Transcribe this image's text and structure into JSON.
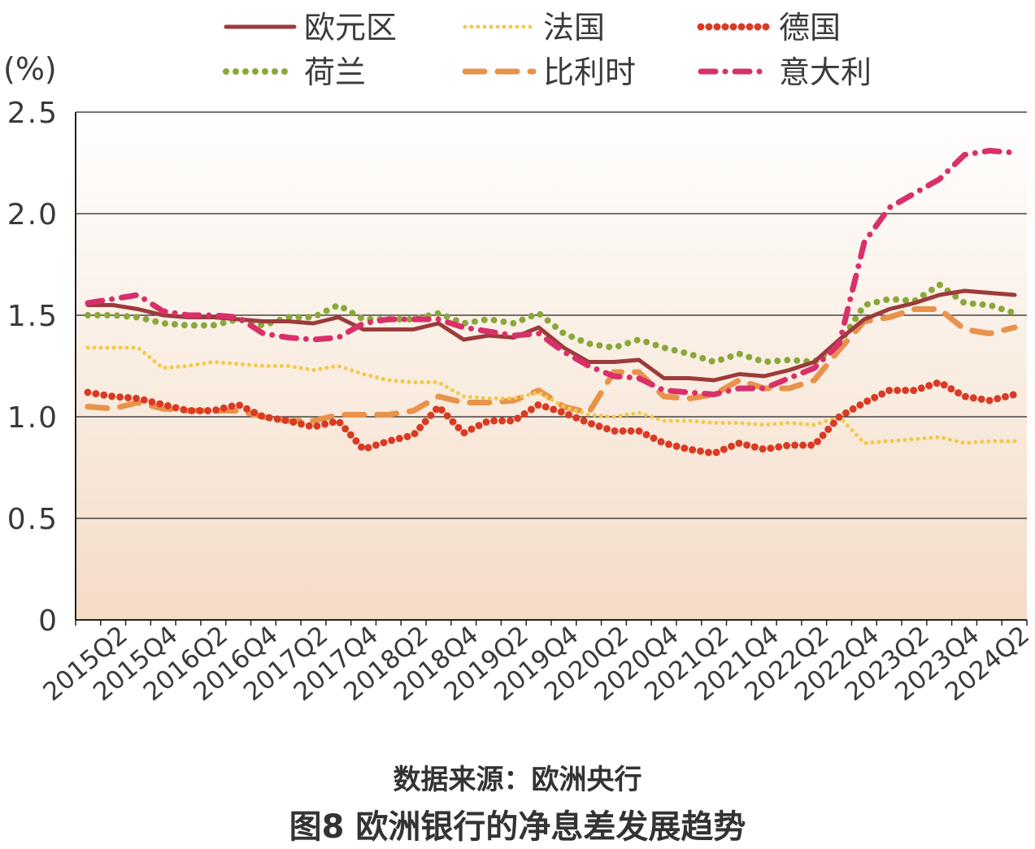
{
  "chart_data": {
    "type": "line",
    "title": "图8 欧洲银行的净息差发展趋势",
    "source": "数据来源：欧洲央行",
    "ylabel": "(%)",
    "ylim": [
      0,
      2.5
    ],
    "yticks": [
      "0",
      "0.5",
      "1.0",
      "1.5",
      "2.0",
      "2.5"
    ],
    "grid": true,
    "legend_position": "top",
    "x_tick_labels": [
      "2015Q2",
      "2015Q4",
      "2016Q2",
      "2016Q4",
      "2017Q2",
      "2017Q4",
      "2018Q2",
      "2018Q4",
      "2019Q2",
      "2019Q4",
      "2020Q2",
      "2020Q4",
      "2021Q2",
      "2021Q4",
      "2022Q2",
      "2022Q4",
      "2023Q2",
      "2023Q4",
      "2024Q2"
    ],
    "x": [
      "2015Q1",
      "2015Q2",
      "2015Q3",
      "2015Q4",
      "2016Q1",
      "2016Q2",
      "2016Q3",
      "2016Q4",
      "2017Q1",
      "2017Q2",
      "2017Q3",
      "2017Q4",
      "2018Q1",
      "2018Q2",
      "2018Q3",
      "2018Q4",
      "2019Q1",
      "2019Q2",
      "2019Q3",
      "2019Q4",
      "2020Q1",
      "2020Q2",
      "2020Q3",
      "2020Q4",
      "2021Q1",
      "2021Q2",
      "2021Q3",
      "2021Q4",
      "2022Q1",
      "2022Q2",
      "2022Q3",
      "2022Q4",
      "2023Q1",
      "2023Q2",
      "2023Q3",
      "2023Q4",
      "2024Q1",
      "2024Q2"
    ],
    "series": [
      {
        "name": "欧元区",
        "color": "#9c3b3b",
        "style": "solid",
        "values": [
          1.55,
          1.55,
          1.53,
          1.5,
          1.49,
          1.49,
          1.48,
          1.47,
          1.47,
          1.46,
          1.49,
          1.43,
          1.43,
          1.43,
          1.46,
          1.38,
          1.4,
          1.39,
          1.44,
          1.34,
          1.27,
          1.27,
          1.28,
          1.19,
          1.19,
          1.18,
          1.21,
          1.2,
          1.23,
          1.27,
          1.38,
          1.48,
          1.53,
          1.56,
          1.6,
          1.62,
          1.61,
          1.6
        ]
      },
      {
        "name": "法国",
        "color": "#f2c94c",
        "style": "dots",
        "values": [
          1.34,
          1.34,
          1.34,
          1.24,
          1.25,
          1.27,
          1.26,
          1.25,
          1.25,
          1.23,
          1.25,
          1.21,
          1.18,
          1.17,
          1.17,
          1.1,
          1.09,
          1.09,
          1.12,
          1.05,
          1.01,
          1.0,
          1.02,
          0.98,
          0.98,
          0.97,
          0.97,
          0.96,
          0.97,
          0.96,
          1.0,
          0.87,
          0.88,
          0.89,
          0.9,
          0.87,
          0.88,
          0.88
        ]
      },
      {
        "name": "德国",
        "color": "#d93a24",
        "style": "dense-dots",
        "values": [
          1.12,
          1.1,
          1.09,
          1.06,
          1.03,
          1.03,
          1.06,
          1.0,
          0.98,
          0.95,
          0.98,
          0.84,
          0.88,
          0.91,
          1.05,
          0.92,
          0.98,
          0.98,
          1.06,
          1.02,
          0.97,
          0.93,
          0.93,
          0.87,
          0.84,
          0.82,
          0.87,
          0.84,
          0.86,
          0.86,
          1.0,
          1.07,
          1.13,
          1.13,
          1.17,
          1.1,
          1.08,
          1.11
        ]
      },
      {
        "name": "荷兰",
        "color": "#8aa83a",
        "style": "big-dots",
        "values": [
          1.5,
          1.5,
          1.49,
          1.46,
          1.45,
          1.45,
          1.48,
          1.45,
          1.49,
          1.49,
          1.55,
          1.48,
          1.48,
          1.48,
          1.51,
          1.46,
          1.48,
          1.46,
          1.51,
          1.41,
          1.36,
          1.34,
          1.38,
          1.34,
          1.31,
          1.27,
          1.31,
          1.27,
          1.28,
          1.27,
          1.36,
          1.55,
          1.58,
          1.57,
          1.65,
          1.56,
          1.55,
          1.51
        ]
      },
      {
        "name": "比利时",
        "color": "#e8924a",
        "style": "dash",
        "values": [
          1.05,
          1.04,
          1.07,
          1.04,
          1.03,
          1.03,
          1.03,
          1.0,
          0.98,
          0.98,
          1.01,
          1.01,
          1.01,
          1.03,
          1.1,
          1.07,
          1.07,
          1.08,
          1.13,
          1.05,
          1.02,
          1.22,
          1.22,
          1.1,
          1.09,
          1.11,
          1.18,
          1.14,
          1.14,
          1.18,
          1.33,
          1.47,
          1.49,
          1.53,
          1.53,
          1.43,
          1.41,
          1.44
        ]
      },
      {
        "name": "意大利",
        "color": "#d9306a",
        "style": "dashdot",
        "values": [
          1.56,
          1.58,
          1.6,
          1.52,
          1.5,
          1.5,
          1.49,
          1.41,
          1.39,
          1.38,
          1.39,
          1.46,
          1.48,
          1.48,
          1.48,
          1.44,
          1.42,
          1.4,
          1.41,
          1.32,
          1.25,
          1.2,
          1.19,
          1.13,
          1.12,
          1.11,
          1.14,
          1.14,
          1.19,
          1.24,
          1.36,
          1.86,
          2.03,
          2.1,
          2.17,
          2.29,
          2.31,
          2.3
        ]
      }
    ]
  }
}
